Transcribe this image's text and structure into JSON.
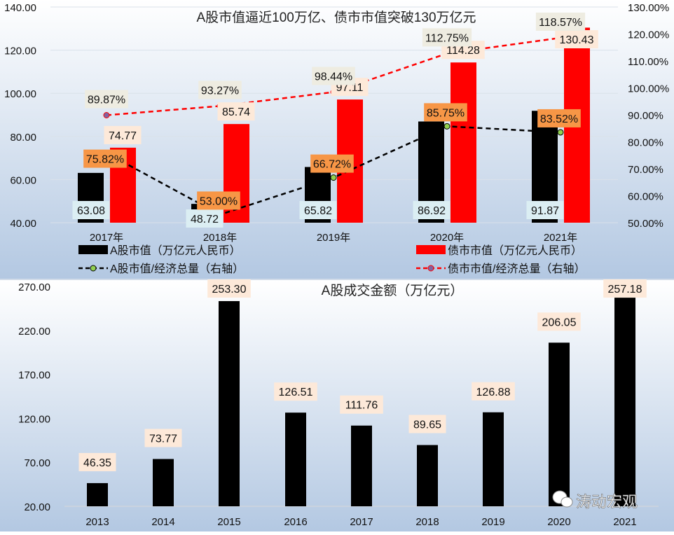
{
  "chart_data": [
    {
      "type": "bar+line",
      "title": "A股市值逼近100万亿、债市市值突破130万亿元",
      "categories": [
        "2017年",
        "2018年",
        "2019年",
        "2020年",
        "2021年"
      ],
      "ylim": [
        40,
        140
      ],
      "y_ticks": [
        "40.00",
        "60.00",
        "80.00",
        "100.00",
        "120.00",
        "140.00"
      ],
      "y2lim": [
        50,
        130
      ],
      "y2_ticks": [
        "50.00%",
        "60.00%",
        "70.00%",
        "80.00%",
        "90.00%",
        "100.00%",
        "110.00%",
        "120.00%",
        "130.00%"
      ],
      "grid": true,
      "legend_position": "bottom",
      "series": [
        {
          "name": "A股市值（万亿元人民币）",
          "kind": "bar",
          "axis": "left",
          "color": "#000000",
          "values": [
            63.08,
            48.72,
            65.82,
            86.92,
            91.87
          ],
          "labels": [
            "63.08",
            "48.72",
            "65.82",
            "86.92",
            "91.87"
          ],
          "label_bg": "#dbeef3"
        },
        {
          "name": "债市市值（万亿元人民币）",
          "kind": "bar",
          "axis": "left",
          "color": "#ff0000",
          "values": [
            74.77,
            85.74,
            97.11,
            114.28,
            130.43
          ],
          "labels": [
            "74.77",
            "85.74",
            "97.11",
            "114.28",
            "130.43"
          ],
          "label_bg": "#fde9d9"
        },
        {
          "name": "A股市值/经济总量（右轴）",
          "kind": "line",
          "axis": "right",
          "color": "#000000",
          "marker_color": "#92d050",
          "values": [
            75.82,
            53.0,
            66.72,
            85.75,
            83.52
          ],
          "labels": [
            "75.82%",
            "53.00%",
            "66.72%",
            "85.75%",
            "83.52%"
          ],
          "label_bg": "#f79646"
        },
        {
          "name": "债市市值/经济总量（右轴）",
          "kind": "line",
          "axis": "right",
          "color": "#ff0000",
          "marker_color": "#8064a2",
          "values": [
            89.87,
            93.27,
            98.44,
            112.75,
            118.57
          ],
          "labels": [
            "89.87%",
            "93.27%",
            "98.44%",
            "112.75%",
            "118.57%"
          ],
          "label_bg": "#eeece1"
        }
      ]
    },
    {
      "type": "bar",
      "title": "A股成交金额（万亿元）",
      "categories": [
        "2013",
        "2014",
        "2015",
        "2016",
        "2017",
        "2018",
        "2019",
        "2020",
        "2021"
      ],
      "values": [
        46.35,
        73.77,
        253.3,
        126.51,
        111.76,
        89.65,
        126.88,
        206.05,
        257.18
      ],
      "labels": [
        "46.35",
        "73.77",
        "253.30",
        "126.51",
        "111.76",
        "89.65",
        "126.88",
        "206.05",
        "257.18"
      ],
      "ylim": [
        20,
        270
      ],
      "y_ticks": [
        "20.00",
        "70.00",
        "120.00",
        "170.00",
        "220.00",
        "270.00"
      ],
      "bar_color": "#000000",
      "label_bg": "#fde9d9",
      "grid": false
    }
  ],
  "watermark": {
    "text": "涛动宏观",
    "icon": "wechat-icon"
  }
}
